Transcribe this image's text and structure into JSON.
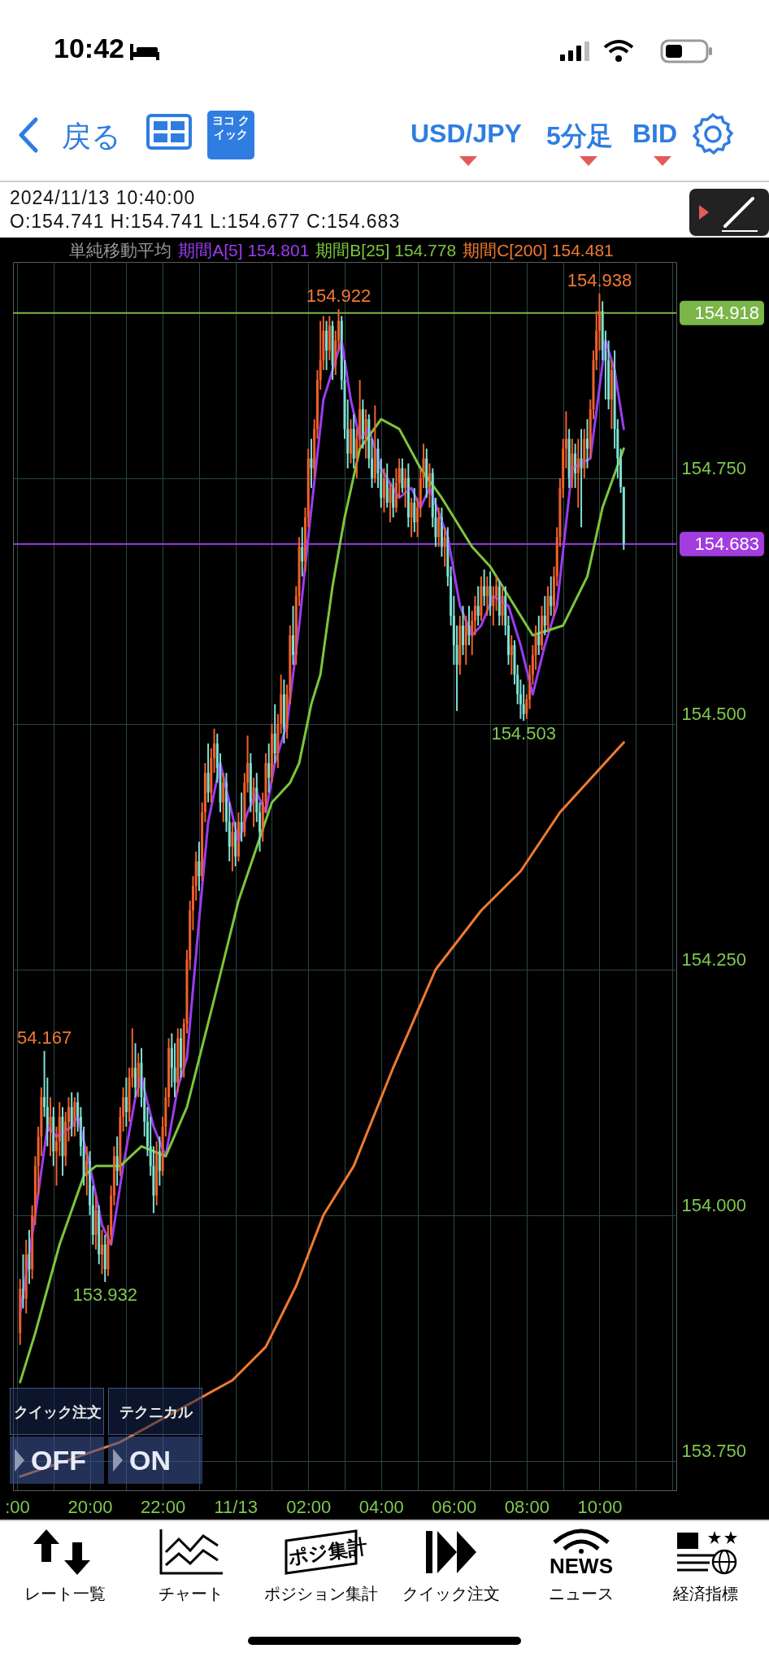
{
  "chart_data": {
    "type": "candlestick",
    "title": "2024/11/13 10:40:00",
    "subtitle": "O:154.741 H:154.741 L:154.677 C:154.683",
    "legend_title": "単純移動平均",
    "legend": "top",
    "grid": true,
    "colors": [
      "#f0602a",
      "#7ee0d2",
      "#f0602a",
      "#7ee0d2",
      "#f0602a",
      "#f0602a",
      "#f0602a",
      "#f0602a",
      "#7ee0d2",
      "#7ee0d2",
      "#f0602a",
      "#7ee0d2",
      "#f0602a",
      "#f0602a",
      "#7ee0d2",
      "#f0602a",
      "#f0602a",
      "#7ee0d2",
      "#f0602a",
      "#7ee0d2",
      "#7ee0d2",
      "#7ee0d2",
      "#f0602a",
      "#7ee0d2",
      "#7ee0d2",
      "#f0602a",
      "#7ee0d2",
      "#f0602a",
      "#7ee0d2",
      "#f0602a",
      "#f0602a",
      "#f0602a",
      "#7ee0d2",
      "#f0602a",
      "#f0602a",
      "#7ee0d2",
      "#f0602a",
      "#f0602a",
      "#7ee0d2",
      "#f0602a",
      "#7ee0d2",
      "#7ee0d2",
      "#7ee0d2",
      "#7ee0d2",
      "#7ee0d2",
      "#f0602a",
      "#7ee0d2",
      "#f0602a",
      "#f0602a",
      "#f0602a",
      "#7ee0d2",
      "#7ee0d2",
      "#f0602a",
      "#7ee0d2",
      "#f0602a",
      "#f0602a",
      "#f0602a",
      "#f0602a",
      "#f0602a",
      "#7ee0d2",
      "#f0602a",
      "#f0602a",
      "#7ee0d2",
      "#f0602a",
      "#f0602a",
      "#7ee0d2",
      "#7ee0d2",
      "#f0602a",
      "#7ee0d2",
      "#7ee0d2",
      "#f0602a",
      "#7ee0d2",
      "#f0602a",
      "#7ee0d2",
      "#f0602a",
      "#f0602a",
      "#7ee0d2",
      "#f0602a",
      "#7ee0d2",
      "#7ee0d2",
      "#f0602a",
      "#f0602a",
      "#7ee0d2",
      "#f0602a",
      "#7ee0d2",
      "#f0602a",
      "#f0602a",
      "#7ee0d2",
      "#f0602a",
      "#f0602a",
      "#7ee0d2",
      "#f0602a",
      "#f0602a",
      "#7ee0d2",
      "#f0602a",
      "#f0602a",
      "#7ee0d2",
      "#f0602a",
      "#f0602a",
      "#f0602a",
      "#f0602a",
      "#7ee0d2",
      "#f0602a",
      "#7ee0d2",
      "#f0602a",
      "#f0602a",
      "#7ee0d2",
      "#7ee0d2",
      "#7ee0d2",
      "#f0602a",
      "#7ee0d2",
      "#f0602a",
      "#f0602a",
      "#7ee0d2",
      "#f0602a",
      "#7ee0d2",
      "#7ee0d2",
      "#f0602a",
      "#7ee0d2",
      "#7ee0d2",
      "#f0602a",
      "#7ee0d2",
      "#f0602a",
      "#7ee0d2",
      "#f0602a",
      "#f0602a",
      "#7ee0d2",
      "#f0602a",
      "#7ee0d2",
      "#f0602a",
      "#7ee0d2",
      "#f0602a",
      "#f0602a",
      "#f0602a",
      "#7ee0d2",
      "#f0602a",
      "#7ee0d2",
      "#7ee0d2",
      "#f0602a",
      "#7ee0d2",
      "#f0602a",
      "#7ee0d2",
      "#7ee0d2",
      "#7ee0d2",
      "#7ee0d2",
      "#f0602a",
      "#7ee0d2",
      "#f0602a",
      "#7ee0d2",
      "#f0602a",
      "#f0602a",
      "#7ee0d2",
      "#f0602a",
      "#7ee0d2",
      "#f0602a",
      "#7ee0d2",
      "#f0602a",
      "#f0602a",
      "#7ee0d2",
      "#f0602a",
      "#7ee0d2",
      "#7ee0d2",
      "#f0602a",
      "#7ee0d2",
      "#7ee0d2",
      "#7ee0d2",
      "#7ee0d2",
      "#f0602a",
      "#f0602a",
      "#f0602a",
      "#f0602a",
      "#7ee0d2",
      "#f0602a",
      "#7ee0d2",
      "#f0602a",
      "#7ee0d2",
      "#f0602a",
      "#f0602a",
      "#f0602a",
      "#f0602a",
      "#f0602a",
      "#7ee0d2",
      "#f0602a",
      "#7ee0d2",
      "#f0602a",
      "#7ee0d2",
      "#f0602a",
      "#7ee0d2",
      "#f0602a",
      "#f0602a",
      "#f0602a",
      "#f0602a",
      "#7ee0d2",
      "#7ee0d2",
      "#7ee0d2",
      "#f0602a",
      "#7ee0d2",
      "#7ee0d2",
      "#7ee0d2",
      "#7ee0d2"
    ],
    "xlim": [
      "2024-11-12T18:00",
      "2024-11-13T12:00"
    ],
    "ylim": [
      153.72,
      154.97
    ],
    "xticks": [
      {
        "value": "2024-11-12T18:00",
        "label": ":00"
      },
      {
        "value": "2024-11-12T19:00",
        "label": null
      },
      {
        "value": "2024-11-12T20:00",
        "label": "20:00"
      },
      {
        "value": "2024-11-12T21:00",
        "label": null
      },
      {
        "value": "2024-11-12T22:00",
        "label": "22:00"
      },
      {
        "value": "2024-11-12T23:00",
        "label": null
      },
      {
        "value": "2024-11-13T00:00",
        "label": "11/13"
      },
      {
        "value": "2024-11-13T01:00",
        "label": null
      },
      {
        "value": "2024-11-13T02:00",
        "label": "02:00"
      },
      {
        "value": "2024-11-13T03:00",
        "label": null
      },
      {
        "value": "2024-11-13T04:00",
        "label": "04:00"
      },
      {
        "value": "2024-11-13T05:00",
        "label": null
      },
      {
        "value": "2024-11-13T06:00",
        "label": "06:00"
      },
      {
        "value": "2024-11-13T07:00",
        "label": null
      },
      {
        "value": "2024-11-13T08:00",
        "label": "08:00"
      },
      {
        "value": "2024-11-13T09:00",
        "label": null
      },
      {
        "value": "2024-11-13T10:00",
        "label": "10:00"
      },
      {
        "value": "2024-11-13T11:00",
        "label": null
      },
      {
        "value": "2024-11-13T12:00",
        "label": null
      }
    ],
    "yticks": [
      {
        "value": 153.75,
        "label": "153.750"
      },
      {
        "value": 154,
        "label": "154.000"
      },
      {
        "value": 154.25,
        "label": "154.250"
      },
      {
        "value": 154.5,
        "label": "154.500"
      },
      {
        "value": 154.75,
        "label": "154.750"
      }
    ],
    "x": [
      "2024-11-12T18:05",
      "2024-11-12T18:10",
      "2024-11-12T18:15",
      "2024-11-12T18:20",
      "2024-11-12T18:25",
      "2024-11-12T18:30",
      "2024-11-12T18:35",
      "2024-11-12T18:40",
      "2024-11-12T18:45",
      "2024-11-12T18:50",
      "2024-11-12T18:55",
      "2024-11-12T19:00",
      "2024-11-12T19:05",
      "2024-11-12T19:10",
      "2024-11-12T19:15",
      "2024-11-12T19:20",
      "2024-11-12T19:25",
      "2024-11-12T19:30",
      "2024-11-12T19:35",
      "2024-11-12T19:40",
      "2024-11-12T19:45",
      "2024-11-12T19:50",
      "2024-11-12T19:55",
      "2024-11-12T20:00",
      "2024-11-12T20:05",
      "2024-11-12T20:10",
      "2024-11-12T20:15",
      "2024-11-12T20:20",
      "2024-11-12T20:25",
      "2024-11-12T20:30",
      "2024-11-12T20:35",
      "2024-11-12T20:40",
      "2024-11-12T20:45",
      "2024-11-12T20:50",
      "2024-11-12T20:55",
      "2024-11-12T21:00",
      "2024-11-12T21:05",
      "2024-11-12T21:10",
      "2024-11-12T21:15",
      "2024-11-12T21:20",
      "2024-11-12T21:25",
      "2024-11-12T21:30",
      "2024-11-12T21:35",
      "2024-11-12T21:40",
      "2024-11-12T21:45",
      "2024-11-12T21:50",
      "2024-11-12T21:55",
      "2024-11-12T22:00",
      "2024-11-12T22:05",
      "2024-11-12T22:10",
      "2024-11-12T22:15",
      "2024-11-12T22:20",
      "2024-11-12T22:25",
      "2024-11-12T22:30",
      "2024-11-12T22:35",
      "2024-11-12T22:40",
      "2024-11-12T22:45",
      "2024-11-12T22:50",
      "2024-11-12T22:55",
      "2024-11-12T23:00",
      "2024-11-12T23:05",
      "2024-11-12T23:10",
      "2024-11-12T23:15",
      "2024-11-12T23:20",
      "2024-11-12T23:25",
      "2024-11-12T23:30",
      "2024-11-12T23:35",
      "2024-11-12T23:40",
      "2024-11-12T23:45",
      "2024-11-12T23:50",
      "2024-11-12T23:55",
      "2024-11-13T00:00",
      "2024-11-13T00:05",
      "2024-11-13T00:10",
      "2024-11-13T00:15",
      "2024-11-13T00:20",
      "2024-11-13T00:25",
      "2024-11-13T00:30",
      "2024-11-13T00:35",
      "2024-11-13T00:40",
      "2024-11-13T00:45",
      "2024-11-13T00:50",
      "2024-11-13T00:55",
      "2024-11-13T01:00",
      "2024-11-13T01:05",
      "2024-11-13T01:10",
      "2024-11-13T01:15",
      "2024-11-13T01:20",
      "2024-11-13T01:25",
      "2024-11-13T01:30",
      "2024-11-13T01:35",
      "2024-11-13T01:40",
      "2024-11-13T01:45",
      "2024-11-13T01:50",
      "2024-11-13T01:55",
      "2024-11-13T02:00",
      "2024-11-13T02:05",
      "2024-11-13T02:10",
      "2024-11-13T02:15",
      "2024-11-13T02:20",
      "2024-11-13T02:25",
      "2024-11-13T02:30",
      "2024-11-13T02:35",
      "2024-11-13T02:40",
      "2024-11-13T02:45",
      "2024-11-13T02:50",
      "2024-11-13T02:55",
      "2024-11-13T03:00",
      "2024-11-13T03:05",
      "2024-11-13T03:10",
      "2024-11-13T03:15",
      "2024-11-13T03:20",
      "2024-11-13T03:25",
      "2024-11-13T03:30",
      "2024-11-13T03:35",
      "2024-11-13T03:40",
      "2024-11-13T03:45",
      "2024-11-13T03:50",
      "2024-11-13T03:55",
      "2024-11-13T04:00",
      "2024-11-13T04:05",
      "2024-11-13T04:10",
      "2024-11-13T04:15",
      "2024-11-13T04:20",
      "2024-11-13T04:25",
      "2024-11-13T04:30",
      "2024-11-13T04:35",
      "2024-11-13T04:40",
      "2024-11-13T04:45",
      "2024-11-13T04:50",
      "2024-11-13T04:55",
      "2024-11-13T05:00",
      "2024-11-13T05:05",
      "2024-11-13T05:10",
      "2024-11-13T05:15",
      "2024-11-13T05:20",
      "2024-11-13T05:25",
      "2024-11-13T05:30",
      "2024-11-13T05:35",
      "2024-11-13T05:40",
      "2024-11-13T05:45",
      "2024-11-13T05:50",
      "2024-11-13T05:55",
      "2024-11-13T06:00",
      "2024-11-13T06:05",
      "2024-11-13T06:10",
      "2024-11-13T06:15",
      "2024-11-13T06:20",
      "2024-11-13T06:25",
      "2024-11-13T06:30",
      "2024-11-13T06:35",
      "2024-11-13T06:40",
      "2024-11-13T06:45",
      "2024-11-13T06:50",
      "2024-11-13T06:55",
      "2024-11-13T07:00",
      "2024-11-13T07:05",
      "2024-11-13T07:10",
      "2024-11-13T07:15",
      "2024-11-13T07:20",
      "2024-11-13T07:25",
      "2024-11-13T07:30",
      "2024-11-13T07:35",
      "2024-11-13T07:40",
      "2024-11-13T07:45",
      "2024-11-13T07:50",
      "2024-11-13T07:55",
      "2024-11-13T08:00",
      "2024-11-13T08:05",
      "2024-11-13T08:10",
      "2024-11-13T08:15",
      "2024-11-13T08:20",
      "2024-11-13T08:25",
      "2024-11-13T08:30",
      "2024-11-13T08:35",
      "2024-11-13T08:40",
      "2024-11-13T08:45",
      "2024-11-13T08:50",
      "2024-11-13T08:55",
      "2024-11-13T09:00",
      "2024-11-13T09:05",
      "2024-11-13T09:10",
      "2024-11-13T09:15",
      "2024-11-13T09:20",
      "2024-11-13T09:25",
      "2024-11-13T09:30",
      "2024-11-13T09:35",
      "2024-11-13T09:40",
      "2024-11-13T09:45",
      "2024-11-13T09:50",
      "2024-11-13T09:55",
      "2024-11-13T10:00",
      "2024-11-13T10:05",
      "2024-11-13T10:10",
      "2024-11-13T10:15",
      "2024-11-13T10:20",
      "2024-11-13T10:25",
      "2024-11-13T10:30",
      "2024-11-13T10:35",
      "2024-11-13T10:40"
    ],
    "ohlc": [
      [
        153.88,
        153.935,
        153.868,
        153.925
      ],
      [
        153.925,
        153.96,
        153.905,
        153.915
      ],
      [
        153.915,
        153.975,
        153.9,
        153.96
      ],
      [
        153.96,
        153.985,
        153.93,
        153.945
      ],
      [
        153.945,
        154.01,
        153.935,
        154.0
      ],
      [
        154.0,
        154.06,
        153.99,
        154.05
      ],
      [
        154.05,
        154.09,
        154.02,
        154.08
      ],
      [
        154.08,
        154.13,
        154.06,
        154.12
      ],
      [
        154.12,
        154.167,
        154.1,
        154.11
      ],
      [
        154.11,
        154.14,
        154.07,
        154.085
      ],
      [
        154.085,
        154.12,
        154.06,
        154.1
      ],
      [
        154.1,
        154.11,
        154.05,
        154.065
      ],
      [
        154.065,
        154.09,
        154.03,
        154.075
      ],
      [
        154.075,
        154.115,
        154.06,
        154.1
      ],
      [
        154.1,
        154.11,
        154.04,
        154.06
      ],
      [
        154.06,
        154.105,
        154.05,
        154.095
      ],
      [
        154.095,
        154.12,
        154.075,
        154.11
      ],
      [
        154.11,
        154.125,
        154.08,
        154.09
      ],
      [
        154.09,
        154.12,
        154.08,
        154.115
      ],
      [
        154.115,
        154.125,
        154.085,
        154.1
      ],
      [
        154.1,
        154.11,
        154.06,
        154.07
      ],
      [
        154.07,
        154.09,
        154.03,
        154.04
      ],
      [
        154.04,
        154.07,
        154.02,
        154.055
      ],
      [
        154.055,
        154.065,
        154.0,
        154.01
      ],
      [
        154.01,
        154.03,
        153.97,
        153.98
      ],
      [
        153.98,
        154.02,
        153.965,
        154.005
      ],
      [
        154.005,
        154.01,
        153.95,
        153.96
      ],
      [
        153.96,
        153.985,
        153.94,
        153.97
      ],
      [
        153.97,
        153.98,
        153.932,
        153.945
      ],
      [
        153.945,
        153.99,
        153.938,
        153.98
      ],
      [
        153.98,
        154.03,
        153.97,
        154.02
      ],
      [
        154.02,
        154.07,
        154.01,
        154.06
      ],
      [
        154.06,
        154.08,
        154.03,
        154.045
      ],
      [
        154.045,
        154.11,
        154.04,
        154.1
      ],
      [
        154.1,
        154.13,
        154.085,
        154.12
      ],
      [
        154.12,
        154.14,
        154.09,
        154.105
      ],
      [
        154.105,
        154.15,
        154.095,
        154.14
      ],
      [
        154.14,
        154.19,
        154.13,
        154.15
      ],
      [
        154.15,
        154.175,
        154.12,
        154.13
      ],
      [
        154.13,
        154.165,
        154.12,
        154.155
      ],
      [
        154.155,
        154.17,
        154.11,
        154.12
      ],
      [
        154.12,
        154.14,
        154.08,
        154.095
      ],
      [
        154.095,
        154.11,
        154.06,
        154.07
      ],
      [
        154.07,
        154.1,
        154.04,
        154.05
      ],
      [
        154.05,
        154.07,
        154.002,
        154.02
      ],
      [
        154.02,
        154.075,
        154.01,
        154.065
      ],
      [
        154.065,
        154.08,
        154.03,
        154.045
      ],
      [
        154.045,
        154.1,
        154.04,
        154.09
      ],
      [
        154.09,
        154.13,
        154.08,
        154.12
      ],
      [
        154.12,
        154.18,
        154.11,
        154.17
      ],
      [
        154.17,
        154.185,
        154.13,
        154.15
      ],
      [
        154.15,
        154.175,
        154.12,
        154.135
      ],
      [
        154.135,
        154.19,
        154.125,
        154.18
      ],
      [
        154.18,
        154.19,
        154.14,
        154.15
      ],
      [
        154.15,
        154.2,
        154.14,
        154.195
      ],
      [
        154.195,
        154.27,
        154.185,
        154.26
      ],
      [
        154.26,
        154.32,
        154.25,
        154.31
      ],
      [
        154.31,
        154.345,
        154.29,
        154.335
      ],
      [
        154.335,
        154.37,
        154.32,
        154.36
      ],
      [
        154.36,
        154.38,
        154.33,
        154.345
      ],
      [
        154.345,
        154.42,
        154.34,
        154.41
      ],
      [
        154.41,
        154.46,
        154.4,
        154.45
      ],
      [
        154.45,
        154.48,
        154.42,
        154.43
      ],
      [
        154.43,
        154.475,
        154.42,
        154.465
      ],
      [
        154.465,
        154.495,
        154.45,
        154.48
      ],
      [
        154.48,
        154.49,
        154.44,
        154.455
      ],
      [
        154.455,
        154.47,
        154.41,
        154.42
      ],
      [
        154.42,
        154.45,
        154.4,
        154.44
      ],
      [
        154.44,
        154.45,
        154.39,
        154.4
      ],
      [
        154.4,
        154.42,
        154.36,
        154.375
      ],
      [
        154.375,
        154.4,
        154.35,
        154.39
      ],
      [
        154.39,
        154.4,
        154.355,
        154.365
      ],
      [
        154.365,
        154.41,
        154.36,
        154.4
      ],
      [
        154.4,
        154.43,
        154.38,
        154.39
      ],
      [
        154.39,
        154.45,
        154.385,
        154.44
      ],
      [
        154.44,
        154.488,
        154.43,
        154.46
      ],
      [
        154.46,
        154.47,
        154.41,
        154.42
      ],
      [
        154.42,
        154.445,
        154.395,
        154.435
      ],
      [
        154.435,
        154.45,
        154.4,
        154.41
      ],
      [
        154.41,
        154.42,
        154.37,
        154.39
      ],
      [
        154.39,
        154.43,
        154.38,
        154.42
      ],
      [
        154.42,
        154.47,
        154.41,
        154.46
      ],
      [
        154.46,
        154.48,
        154.43,
        154.445
      ],
      [
        154.445,
        154.5,
        154.44,
        154.49
      ],
      [
        154.49,
        154.52,
        154.46,
        154.47
      ],
      [
        154.47,
        154.51,
        154.455,
        154.5
      ],
      [
        154.5,
        154.55,
        154.49,
        154.53
      ],
      [
        154.53,
        154.545,
        154.48,
        154.495
      ],
      [
        154.495,
        154.54,
        154.485,
        154.53
      ],
      [
        154.53,
        154.6,
        154.52,
        154.59
      ],
      [
        154.59,
        154.62,
        154.56,
        154.57
      ],
      [
        154.57,
        154.64,
        154.56,
        154.63
      ],
      [
        154.63,
        154.69,
        154.62,
        154.68
      ],
      [
        154.68,
        154.7,
        154.65,
        154.665
      ],
      [
        154.665,
        154.72,
        154.655,
        154.71
      ],
      [
        154.71,
        154.78,
        154.7,
        154.77
      ],
      [
        154.77,
        154.79,
        154.74,
        154.76
      ],
      [
        154.76,
        154.81,
        154.75,
        154.8
      ],
      [
        154.8,
        154.86,
        154.79,
        154.85
      ],
      [
        154.85,
        154.91,
        154.84,
        154.87
      ],
      [
        154.87,
        154.915,
        154.86,
        154.9
      ],
      [
        154.9,
        154.91,
        154.86,
        154.88
      ],
      [
        154.88,
        154.915,
        154.87,
        154.905
      ],
      [
        154.905,
        154.91,
        154.85,
        154.865
      ],
      [
        154.865,
        154.9,
        154.855,
        154.89
      ],
      [
        154.89,
        154.922,
        154.88,
        154.91
      ],
      [
        154.91,
        154.915,
        154.84,
        154.85
      ],
      [
        154.85,
        154.87,
        154.79,
        154.8
      ],
      [
        154.8,
        154.83,
        154.76,
        154.775
      ],
      [
        154.775,
        154.81,
        154.765,
        154.8
      ],
      [
        154.8,
        154.815,
        154.76,
        154.77
      ],
      [
        154.77,
        154.8,
        154.75,
        154.79
      ],
      [
        154.79,
        154.85,
        154.78,
        154.82
      ],
      [
        154.82,
        154.83,
        154.78,
        154.79
      ],
      [
        154.79,
        154.82,
        154.77,
        154.81
      ],
      [
        154.81,
        154.815,
        154.76,
        154.77
      ],
      [
        154.77,
        154.79,
        154.74,
        154.75
      ],
      [
        154.75,
        154.824,
        154.745,
        154.78
      ],
      [
        154.78,
        154.79,
        154.74,
        154.755
      ],
      [
        154.755,
        154.77,
        154.72,
        154.73
      ],
      [
        154.73,
        154.76,
        154.715,
        154.75
      ],
      [
        154.75,
        154.765,
        154.72,
        154.725
      ],
      [
        154.725,
        154.745,
        154.705,
        154.74
      ],
      [
        154.74,
        154.75,
        154.71,
        154.72
      ],
      [
        154.72,
        154.76,
        154.715,
        154.745
      ],
      [
        154.745,
        154.77,
        154.73,
        154.76
      ],
      [
        154.76,
        154.77,
        154.735,
        154.74
      ],
      [
        154.74,
        154.76,
        154.72,
        154.75
      ],
      [
        154.75,
        154.765,
        154.7,
        154.71
      ],
      [
        154.71,
        154.73,
        154.69,
        154.725
      ],
      [
        154.725,
        154.74,
        154.695,
        154.705
      ],
      [
        154.705,
        154.73,
        154.69,
        154.72
      ],
      [
        154.72,
        154.76,
        154.71,
        154.75
      ],
      [
        154.75,
        154.785,
        154.74,
        154.77
      ],
      [
        154.77,
        154.78,
        154.73,
        154.74
      ],
      [
        154.74,
        154.765,
        154.72,
        154.755
      ],
      [
        154.755,
        154.76,
        154.7,
        154.71
      ],
      [
        154.71,
        154.73,
        154.68,
        154.69
      ],
      [
        154.69,
        154.72,
        154.68,
        154.71
      ],
      [
        154.71,
        154.72,
        154.67,
        154.68
      ],
      [
        154.68,
        154.7,
        154.66,
        154.69
      ],
      [
        154.69,
        154.7,
        154.64,
        154.65
      ],
      [
        154.65,
        154.66,
        154.6,
        154.61
      ],
      [
        154.61,
        154.63,
        154.56,
        154.58
      ],
      [
        154.58,
        154.6,
        154.513,
        154.56
      ],
      [
        154.56,
        154.61,
        154.55,
        154.6
      ],
      [
        154.6,
        154.62,
        154.57,
        154.58
      ],
      [
        154.58,
        154.61,
        154.56,
        154.6
      ],
      [
        154.6,
        154.62,
        154.58,
        154.59
      ],
      [
        154.59,
        154.615,
        154.57,
        154.605
      ],
      [
        154.605,
        154.63,
        154.59,
        154.62
      ],
      [
        154.62,
        154.64,
        154.6,
        154.61
      ],
      [
        154.61,
        154.65,
        154.605,
        154.64
      ],
      [
        154.64,
        154.657,
        154.62,
        154.63
      ],
      [
        154.63,
        154.65,
        154.61,
        154.64
      ],
      [
        154.64,
        154.655,
        154.61,
        154.62
      ],
      [
        154.62,
        154.64,
        154.6,
        154.63
      ],
      [
        154.63,
        154.65,
        154.615,
        154.64
      ],
      [
        154.64,
        154.645,
        154.6,
        154.61
      ],
      [
        154.61,
        154.64,
        154.6,
        154.63
      ],
      [
        154.63,
        154.64,
        154.59,
        154.6
      ],
      [
        154.6,
        154.61,
        154.56,
        154.57
      ],
      [
        154.57,
        154.59,
        154.55,
        154.58
      ],
      [
        154.58,
        154.585,
        154.54,
        154.55
      ],
      [
        154.55,
        154.56,
        154.52,
        154.53
      ],
      [
        154.53,
        154.545,
        154.505,
        154.52
      ],
      [
        154.52,
        154.54,
        154.503,
        154.51
      ],
      [
        154.51,
        154.53,
        154.505,
        154.525
      ],
      [
        154.525,
        154.56,
        154.515,
        154.55
      ],
      [
        154.55,
        154.58,
        154.54,
        154.57
      ],
      [
        154.57,
        154.6,
        154.555,
        154.59
      ],
      [
        154.59,
        154.61,
        154.57,
        154.58
      ],
      [
        154.58,
        154.62,
        154.575,
        154.61
      ],
      [
        154.61,
        154.63,
        154.59,
        154.6
      ],
      [
        154.6,
        154.64,
        154.595,
        154.63
      ],
      [
        154.63,
        154.65,
        154.61,
        154.62
      ],
      [
        154.62,
        154.66,
        154.61,
        154.65
      ],
      [
        154.65,
        154.7,
        154.64,
        154.69
      ],
      [
        154.69,
        154.75,
        154.68,
        154.74
      ],
      [
        154.74,
        154.79,
        154.73,
        154.78
      ],
      [
        154.78,
        154.818,
        154.76,
        154.79
      ],
      [
        154.79,
        154.8,
        154.74,
        154.75
      ],
      [
        154.75,
        154.79,
        154.74,
        154.775
      ],
      [
        154.775,
        154.785,
        154.74,
        154.755
      ],
      [
        154.755,
        154.79,
        154.72,
        154.77
      ],
      [
        154.77,
        154.8,
        154.7,
        154.76
      ],
      [
        154.76,
        154.8,
        154.75,
        154.79
      ],
      [
        154.79,
        154.81,
        154.76,
        154.78
      ],
      [
        154.78,
        154.83,
        154.77,
        154.82
      ],
      [
        154.82,
        154.88,
        154.81,
        154.87
      ],
      [
        154.87,
        154.92,
        154.86,
        154.9
      ],
      [
        154.9,
        154.938,
        154.88,
        154.92
      ],
      [
        154.92,
        154.93,
        154.87,
        154.88
      ],
      [
        154.88,
        154.9,
        154.83,
        154.87
      ],
      [
        154.87,
        154.89,
        154.82,
        154.83
      ],
      [
        154.83,
        154.87,
        154.8,
        154.86
      ],
      [
        154.86,
        154.88,
        154.78,
        154.8
      ],
      [
        154.8,
        154.81,
        154.75,
        154.77
      ],
      [
        154.77,
        154.78,
        154.735,
        154.741
      ],
      [
        154.741,
        154.741,
        154.677,
        154.683
      ]
    ],
    "series": [
      {
        "name": "期間A[5] 154.801",
        "type": "line",
        "color": "#9b3cf0",
        "x": [
          "2024-11-12T18:05",
          "2024-11-12T18:30",
          "2024-11-12T18:50",
          "2024-11-12T19:05",
          "2024-11-12T19:30",
          "2024-11-12T19:40",
          "2024-11-12T20:00",
          "2024-11-12T20:20",
          "2024-11-12T20:35",
          "2024-11-12T20:55",
          "2024-11-12T21:15",
          "2024-11-12T21:25",
          "2024-11-12T21:45",
          "2024-11-12T22:05",
          "2024-11-12T22:25",
          "2024-11-12T22:40",
          "2024-11-12T23:00",
          "2024-11-12T23:15",
          "2024-11-12T23:35",
          "2024-11-12T23:50",
          "2024-11-13T00:05",
          "2024-11-13T00:20",
          "2024-11-13T00:35",
          "2024-11-13T00:50",
          "2024-11-13T01:05",
          "2024-11-13T01:25",
          "2024-11-13T01:45",
          "2024-11-13T02:00",
          "2024-11-13T02:25",
          "2024-11-13T02:55",
          "2024-11-13T03:10",
          "2024-11-13T03:25",
          "2024-11-13T03:40",
          "2024-11-13T04:00",
          "2024-11-13T04:30",
          "2024-11-13T04:50",
          "2024-11-13T05:05",
          "2024-11-13T05:20",
          "2024-11-13T05:50",
          "2024-11-13T06:10",
          "2024-11-13T06:30",
          "2024-11-13T06:45",
          "2024-11-13T07:05",
          "2024-11-13T07:30",
          "2024-11-13T07:50",
          "2024-11-13T08:10",
          "2024-11-13T08:30",
          "2024-11-13T08:50",
          "2024-11-13T09:15",
          "2024-11-13T09:45",
          "2024-11-13T10:10",
          "2024-11-13T10:25",
          "2024-11-13T10:40"
        ],
        "values": [
          153.9,
          154.0,
          154.09,
          154.08,
          154.09,
          154.1,
          154.05,
          153.99,
          153.97,
          154.05,
          154.12,
          154.14,
          154.09,
          154.06,
          154.13,
          154.16,
          154.3,
          154.4,
          154.46,
          154.42,
          154.38,
          154.41,
          154.43,
          154.41,
          154.46,
          154.5,
          154.6,
          154.69,
          154.83,
          154.89,
          154.83,
          154.79,
          154.8,
          154.76,
          154.73,
          154.74,
          154.72,
          154.74,
          154.69,
          154.62,
          154.59,
          154.6,
          154.63,
          154.62,
          154.58,
          154.53,
          154.58,
          154.62,
          154.76,
          154.77,
          154.89,
          154.86,
          154.8
        ]
      },
      {
        "name": "期間B[25] 154.778",
        "type": "line",
        "color": "#7cc63c",
        "x": [
          "2024-11-12T18:05",
          "2024-11-12T18:30",
          "2024-11-12T19:10",
          "2024-11-12T19:50",
          "2024-11-12T20:10",
          "2024-11-12T20:50",
          "2024-11-12T21:25",
          "2024-11-12T22:05",
          "2024-11-12T22:40",
          "2024-11-12T23:25",
          "2024-11-13T00:05",
          "2024-11-13T01:00",
          "2024-11-13T01:30",
          "2024-11-13T01:45",
          "2024-11-13T02:05",
          "2024-11-13T02:20",
          "2024-11-13T02:40",
          "2024-11-13T03:00",
          "2024-11-13T03:25",
          "2024-11-13T04:00",
          "2024-11-13T04:30",
          "2024-11-13T05:05",
          "2024-11-13T05:40",
          "2024-11-13T06:30",
          "2024-11-13T07:00",
          "2024-11-13T07:30",
          "2024-11-13T08:10",
          "2024-11-13T09:00",
          "2024-11-13T09:40",
          "2024-11-13T10:05",
          "2024-11-13T10:40"
        ],
        "values": [
          153.83,
          153.88,
          153.97,
          154.04,
          154.05,
          154.05,
          154.07,
          154.06,
          154.11,
          154.22,
          154.32,
          154.42,
          154.44,
          154.46,
          154.52,
          154.55,
          154.64,
          154.71,
          154.78,
          154.81,
          154.8,
          154.76,
          154.73,
          154.68,
          154.66,
          154.63,
          154.59,
          154.6,
          154.65,
          154.72,
          154.78
        ]
      },
      {
        "name": "期間C[200] 154.481",
        "type": "line",
        "color": "#f07a30",
        "x": [
          "2024-11-12T18:05",
          "2024-11-12T20:50",
          "2024-11-12T23:55",
          "2024-11-13T00:50",
          "2024-11-13T01:40",
          "2024-11-13T02:25",
          "2024-11-13T03:15",
          "2024-11-13T04:20",
          "2024-11-13T05:30",
          "2024-11-13T06:45",
          "2024-11-13T07:50",
          "2024-11-13T08:55",
          "2024-11-13T10:40"
        ],
        "values": [
          153.734,
          153.769,
          153.832,
          153.866,
          153.928,
          154.0,
          154.05,
          154.15,
          154.25,
          154.31,
          154.35,
          154.41,
          154.481
        ]
      }
    ],
    "ref_lines": [
      {
        "axis": "y",
        "value": 154.918,
        "label": "154.918",
        "color": "#7ab648"
      },
      {
        "axis": "y",
        "value": 154.683,
        "label": "154.683",
        "color": "#a23de0"
      }
    ],
    "annotations": [
      "10:42",
      "戻る",
      "ヨコ クイック",
      "USD/JPY",
      "5分足",
      "BID",
      "クイック注文",
      "OFF",
      "テクニカル",
      "ON",
      "レート一覧",
      "チャート",
      "ポジ集計",
      "ポジション集計",
      "クイック注文",
      "NEWS",
      "ニュース",
      "経済指標",
      {
        "text": "154.922",
        "x": "2024-11-13T02:50",
        "y": 154.922
      },
      {
        "text": "154.938",
        "x": "2024-11-13T10:00",
        "y": 154.938
      },
      {
        "text": "154.503",
        "x": "2024-11-13T07:55",
        "y": 154.503
      },
      {
        "text": "54.167",
        "x": "2024-11-12T18:45",
        "y": 154.167
      },
      {
        "text": "153.932",
        "x": "2024-11-12T20:25",
        "y": 153.932
      }
    ]
  }
}
